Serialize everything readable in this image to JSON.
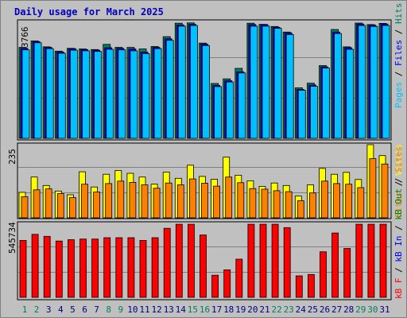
{
  "title": "Daily usage for March 2025",
  "colors": {
    "hits": "#00805c",
    "files": "#0000ff",
    "pages": "#00c0ff",
    "visits": "#ffff00",
    "sites": "#ff8000",
    "kb_in": "#ff0000",
    "kb_out": "#008000",
    "kb_f": "#ff0000",
    "sep": "#000000",
    "weekday_label": "#000080",
    "weekend_label": "#00805c"
  },
  "chart_data": [
    {
      "type": "bar",
      "panel": "hits",
      "ymax_label": "3766",
      "ymax": 3766,
      "legend": [
        "Pages",
        "Files",
        "Hits"
      ],
      "categories": [
        "1",
        "2",
        "3",
        "4",
        "5",
        "6",
        "7",
        "8",
        "9",
        "10",
        "11",
        "12",
        "13",
        "14",
        "15",
        "16",
        "17",
        "18",
        "19",
        "20",
        "21",
        "22",
        "23",
        "24",
        "25",
        "26",
        "27",
        "28",
        "29",
        "30",
        "31"
      ],
      "series": [
        {
          "name": "Hits",
          "values": [
            2950,
            3160,
            2970,
            2830,
            2920,
            2900,
            2880,
            3050,
            2950,
            2950,
            2900,
            2980,
            3300,
            3735,
            3745,
            3090,
            1780,
            1930,
            2270,
            3735,
            3700,
            3630,
            3450,
            1640,
            1790,
            2360,
            3530,
            2970,
            3740,
            3690,
            3730
          ]
        },
        {
          "name": "Files",
          "values": [
            2920,
            3140,
            2950,
            2800,
            2910,
            2880,
            2860,
            2940,
            2920,
            2900,
            2800,
            2950,
            3230,
            3680,
            3700,
            3060,
            1720,
            1870,
            2160,
            3690,
            3690,
            3600,
            3420,
            1590,
            1730,
            2320,
            3450,
            2940,
            3710,
            3670,
            3710
          ]
        },
        {
          "name": "Pages",
          "values": [
            2870,
            3100,
            2910,
            2760,
            2860,
            2840,
            2820,
            2890,
            2870,
            2840,
            2750,
            2910,
            3180,
            3640,
            3660,
            3010,
            1680,
            1830,
            2120,
            3640,
            3640,
            3570,
            3370,
            1560,
            1690,
            2280,
            3400,
            2890,
            3660,
            3630,
            3660
          ]
        }
      ]
    },
    {
      "type": "bar",
      "panel": "visits",
      "ymax_label": "235",
      "ymax": 235,
      "legend": [
        "Sites",
        "Visits"
      ],
      "categories": [
        "1",
        "2",
        "3",
        "4",
        "5",
        "6",
        "7",
        "8",
        "9",
        "10",
        "11",
        "12",
        "13",
        "14",
        "15",
        "16",
        "17",
        "18",
        "19",
        "20",
        "21",
        "22",
        "23",
        "24",
        "25",
        "26",
        "27",
        "28",
        "29",
        "30",
        "31"
      ],
      "series": [
        {
          "name": "Visits",
          "values": [
            82,
            131,
            104,
            86,
            74,
            148,
            99,
            140,
            152,
            143,
            131,
            108,
            147,
            127,
            169,
            133,
            124,
            195,
            137,
            119,
            101,
            112,
            104,
            70,
            106,
            159,
            140,
            146,
            123,
            235,
            200
          ]
        },
        {
          "name": "Sites",
          "values": [
            68,
            90,
            93,
            78,
            65,
            108,
            83,
            110,
            118,
            114,
            106,
            95,
            112,
            106,
            125,
            111,
            102,
            131,
            113,
            94,
            92,
            87,
            84,
            55,
            80,
            118,
            110,
            108,
            97,
            190,
            173
          ]
        }
      ]
    },
    {
      "type": "bar",
      "panel": "kbytes",
      "ymax_label": "545734",
      "ymax": 545734,
      "legend": [
        "kB F",
        "kB In",
        "kB Out",
        "Sites"
      ],
      "categories": [
        "1",
        "2",
        "3",
        "4",
        "5",
        "6",
        "7",
        "8",
        "9",
        "10",
        "11",
        "12",
        "13",
        "14",
        "15",
        "16",
        "17",
        "18",
        "19",
        "20",
        "21",
        "22",
        "23",
        "24",
        "25",
        "26",
        "27",
        "28",
        "29",
        "30",
        "31"
      ],
      "series": [
        {
          "name": "kB F",
          "values": [
            425000,
            470000,
            455000,
            420000,
            430000,
            435000,
            435000,
            445000,
            445000,
            445000,
            425000,
            445000,
            515000,
            545000,
            545000,
            465000,
            165000,
            205000,
            285000,
            545000,
            545000,
            545000,
            520000,
            160000,
            170000,
            340000,
            480000,
            365000,
            545000,
            545000,
            545000
          ]
        }
      ]
    }
  ]
}
